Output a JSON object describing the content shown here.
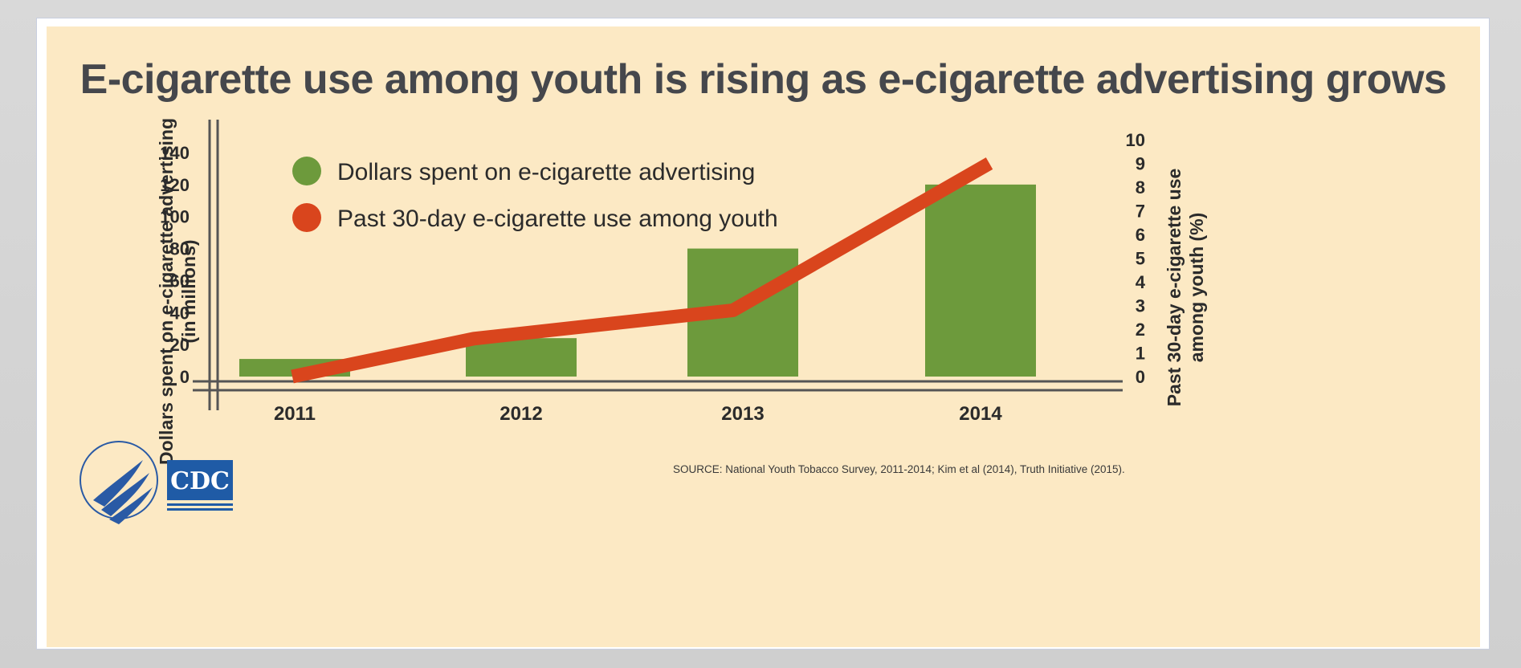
{
  "title": "E-cigarette use among youth is rising as e-cigarette advertising grows",
  "source": "SOURCE: National Youth Tobacco Survey, 2011-2014; Kim et al (2014), Truth Initiative (2015).",
  "logos": {
    "hhs": "hhs-eagle-seal",
    "cdc": "CDC"
  },
  "colors": {
    "bar": "#6d9a3c",
    "line": "#d9451d",
    "panel": "#fce9c4",
    "axis": "#555555"
  },
  "chart_data": {
    "type": "bar+line",
    "categories": [
      "2011",
      "2012",
      "2013",
      "2014"
    ],
    "series": [
      {
        "name": "Dollars spent on e-cigarette advertising",
        "type": "bar",
        "axis": "left",
        "values": [
          11,
          24,
          80,
          120
        ]
      },
      {
        "name": "Past 30-day e-cigarette use among youth",
        "type": "line",
        "axis": "right",
        "x": [
          "2011",
          "2012",
          "2013",
          "2014"
        ],
        "values": [
          0.0,
          1.6,
          2.8,
          9.0
        ]
      }
    ],
    "left_axis": {
      "label": "Dollars spent on e-cigarette advertising",
      "sublabel": "(in millions)",
      "ticks": [
        "0",
        "20",
        "40",
        "60",
        "80",
        "100",
        "120",
        "140"
      ],
      "range": [
        0,
        140
      ]
    },
    "right_axis": {
      "label": "Past 30-day e-cigarette use",
      "sublabel": "among youth (%)",
      "ticks": [
        "0",
        "1",
        "2",
        "3",
        "4",
        "5",
        "6",
        "7",
        "8",
        "9",
        "10"
      ],
      "range": [
        0,
        10
      ]
    },
    "legend": {
      "position": "top-left"
    }
  }
}
